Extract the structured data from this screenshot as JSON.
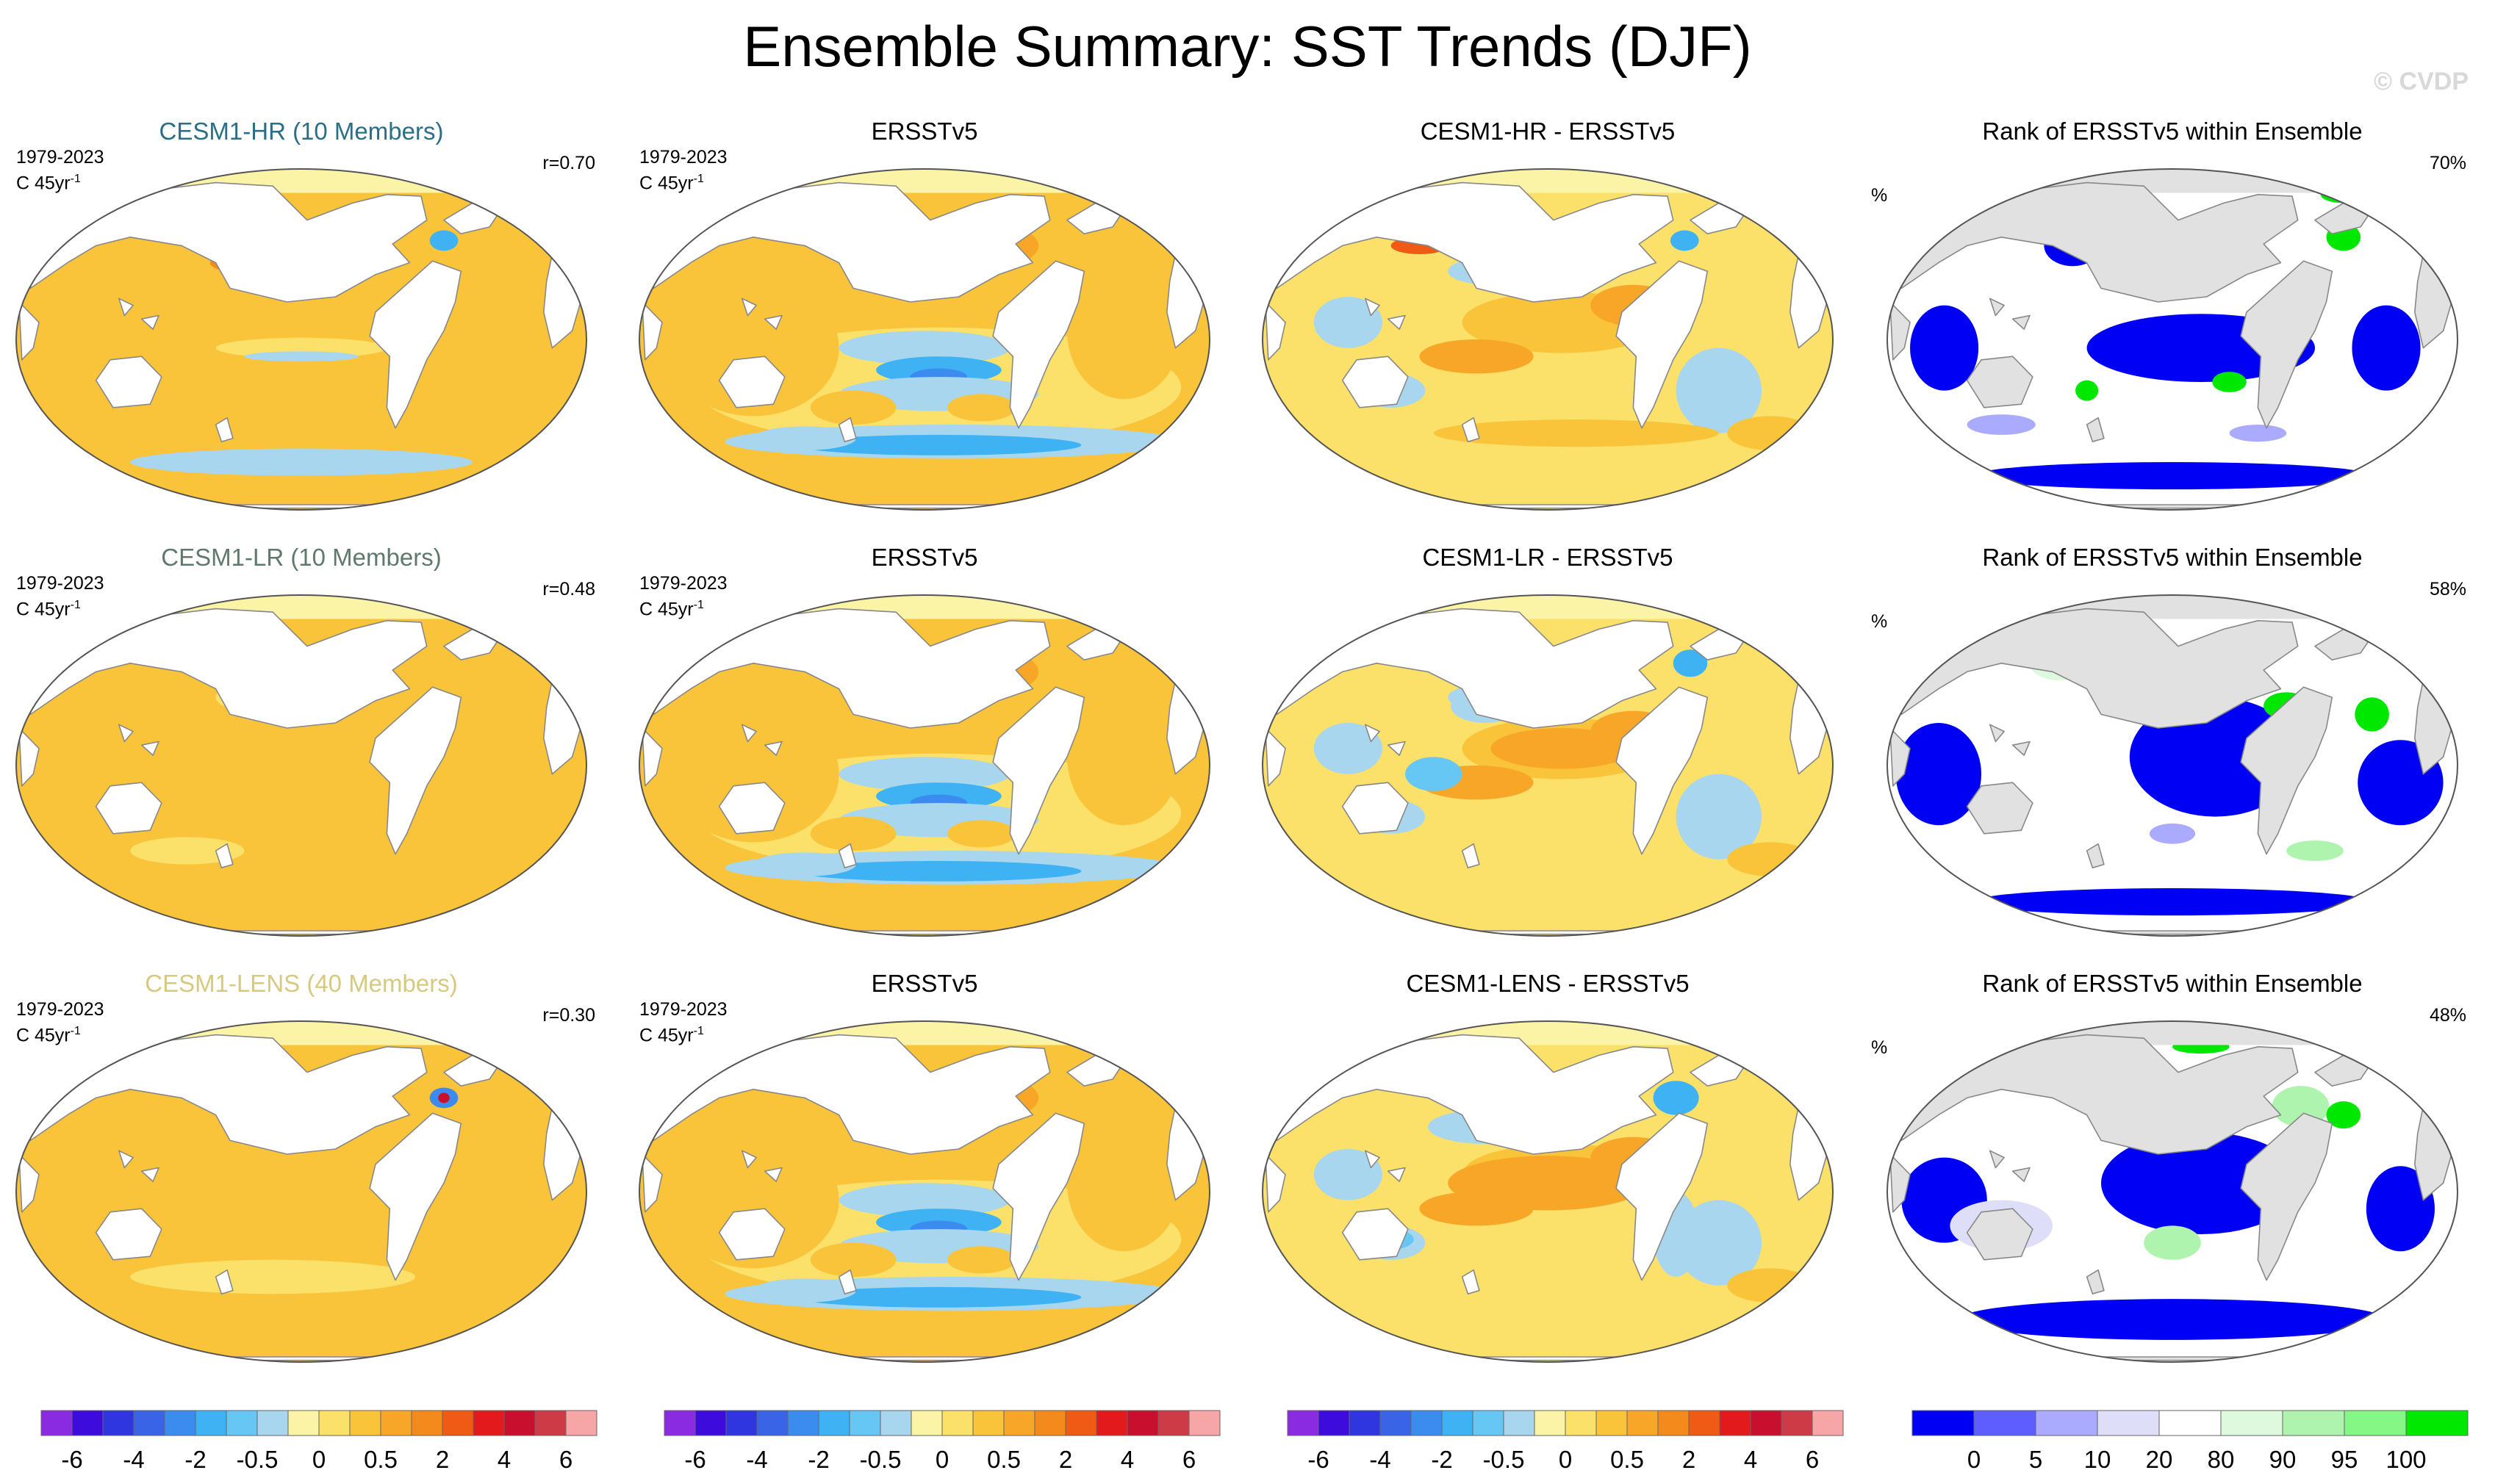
{
  "title": "Ensemble Summary: SST Trends (DJF)",
  "watermark": "© CVDP",
  "colors": {
    "trend_scale": [
      "#8a2be2",
      "#3d0bdc",
      "#2f36e0",
      "#3a64e6",
      "#3c8cf0",
      "#3fb2f4",
      "#66c6f4",
      "#a8d6ee",
      "#fbf4a6",
      "#fbe06a",
      "#f9c43a",
      "#f8a628",
      "#f58a1c",
      "#ef5a14",
      "#e31a1c",
      "#c8102e",
      "#cd3c46",
      "#f6a6a6"
    ],
    "rank_scale": [
      "#0000f4",
      "#5e5eff",
      "#aaaaff",
      "#dedef8",
      "#ffffff",
      "#dff9df",
      "#aef3ae",
      "#84f784",
      "#00e800"
    ],
    "land": "#ffffff",
    "land_rank": "#e1e1e1",
    "coast": "#888888",
    "title_model_hr": "#2b6e88",
    "title_model_lr": "#5f7a6c",
    "title_model_lens": "#d6c980"
  },
  "rows": [
    {
      "model_panel": {
        "title": "CESM1-HR (10 Members)",
        "period": "1979-2023",
        "units_base": "C 45yr",
        "units_exp": "-1",
        "corr": "r=0.70"
      },
      "obs_panel": {
        "title": "ERSSTv5",
        "period": "1979-2023",
        "units_base": "C 45yr",
        "units_exp": "-1"
      },
      "diff_panel": {
        "title": "CESM1-HR - ERSSTv5"
      },
      "rank_panel": {
        "title": "Rank of ERSSTv5 within Ensemble",
        "unit": "%",
        "pct": "70%"
      }
    },
    {
      "model_panel": {
        "title": "CESM1-LR (10 Members)",
        "period": "1979-2023",
        "units_base": "C 45yr",
        "units_exp": "-1",
        "corr": "r=0.48"
      },
      "obs_panel": {
        "title": "ERSSTv5",
        "period": "1979-2023",
        "units_base": "C 45yr",
        "units_exp": "-1"
      },
      "diff_panel": {
        "title": "CESM1-LR - ERSSTv5"
      },
      "rank_panel": {
        "title": "Rank of ERSSTv5 within Ensemble",
        "unit": "%",
        "pct": "58%"
      }
    },
    {
      "model_panel": {
        "title": "CESM1-LENS (40 Members)",
        "period": "1979-2023",
        "units_base": "C 45yr",
        "units_exp": "-1",
        "corr": "r=0.30"
      },
      "obs_panel": {
        "title": "ERSSTv5",
        "period": "1979-2023",
        "units_base": "C 45yr",
        "units_exp": "-1"
      },
      "diff_panel": {
        "title": "CESM1-LENS - ERSSTv5"
      },
      "rank_panel": {
        "title": "Rank of ERSSTv5 within Ensemble",
        "unit": "%",
        "pct": "48%"
      }
    }
  ],
  "colorbars": {
    "trend_labels": [
      "-6",
      "-4",
      "-2",
      "-0.5",
      "0",
      "0.5",
      "2",
      "4",
      "6"
    ],
    "rank_labels": [
      "0",
      "5",
      "10",
      "20",
      "80",
      "90",
      "95",
      "100"
    ]
  },
  "chart_data": {
    "type": "heatmap",
    "title": "Ensemble Summary: SST Trends (DJF)",
    "projection": "global map",
    "period": "1979-2023",
    "season": "DJF",
    "trend_units": "C 45yr-1",
    "trend_contour_levels": [
      -6,
      -4,
      -2,
      -0.5,
      0,
      0.5,
      2,
      4,
      6
    ],
    "rank_levels_percent": [
      0,
      5,
      10,
      20,
      80,
      90,
      95,
      100
    ],
    "rows": [
      {
        "model": "CESM1-HR (10 Members)",
        "pattern_correlation": 0.7,
        "obs_rank_summary_percent": 70
      },
      {
        "model": "CESM1-LR (10 Members)",
        "pattern_correlation": 0.48,
        "obs_rank_summary_percent": 58
      },
      {
        "model": "CESM1-LENS (40 Members)",
        "pattern_correlation": 0.3,
        "obs_rank_summary_percent": 48
      }
    ],
    "columns": [
      "ensemble mean trend",
      "observed trend (ERSSTv5)",
      "difference",
      "rank of observations within ensemble"
    ]
  }
}
